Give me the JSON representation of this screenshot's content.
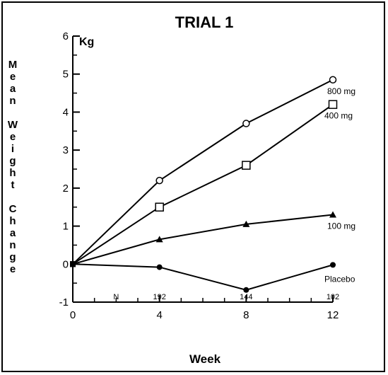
{
  "chart_data": {
    "type": "line",
    "title": "TRIAL 1",
    "ylabel": "Mean Weight Change",
    "xlabel": "Week",
    "y_unit": "Kg",
    "x": [
      0,
      4,
      8,
      12
    ],
    "xlim": [
      0,
      12
    ],
    "ylim": [
      -1,
      6
    ],
    "x_ticks": [
      "0",
      "4",
      "8",
      "12"
    ],
    "y_ticks": [
      "-1",
      "0",
      "1",
      "2",
      "3",
      "4",
      "5",
      "6"
    ],
    "grid": false,
    "n_row": {
      "label": "N",
      "values": [
        "192",
        "144",
        "102"
      ]
    },
    "series": [
      {
        "name": "800 mg",
        "marker": "open-circle",
        "values": [
          0,
          2.2,
          3.7,
          4.85
        ]
      },
      {
        "name": "400 mg",
        "marker": "open-square",
        "values": [
          0,
          1.5,
          2.6,
          4.2
        ]
      },
      {
        "name": "100 mg",
        "marker": "filled-triangle",
        "values": [
          0,
          0.65,
          1.05,
          1.3
        ]
      },
      {
        "name": "Placebo",
        "marker": "filled-circle",
        "values": [
          0,
          -0.08,
          -0.68,
          -0.02
        ]
      }
    ]
  }
}
